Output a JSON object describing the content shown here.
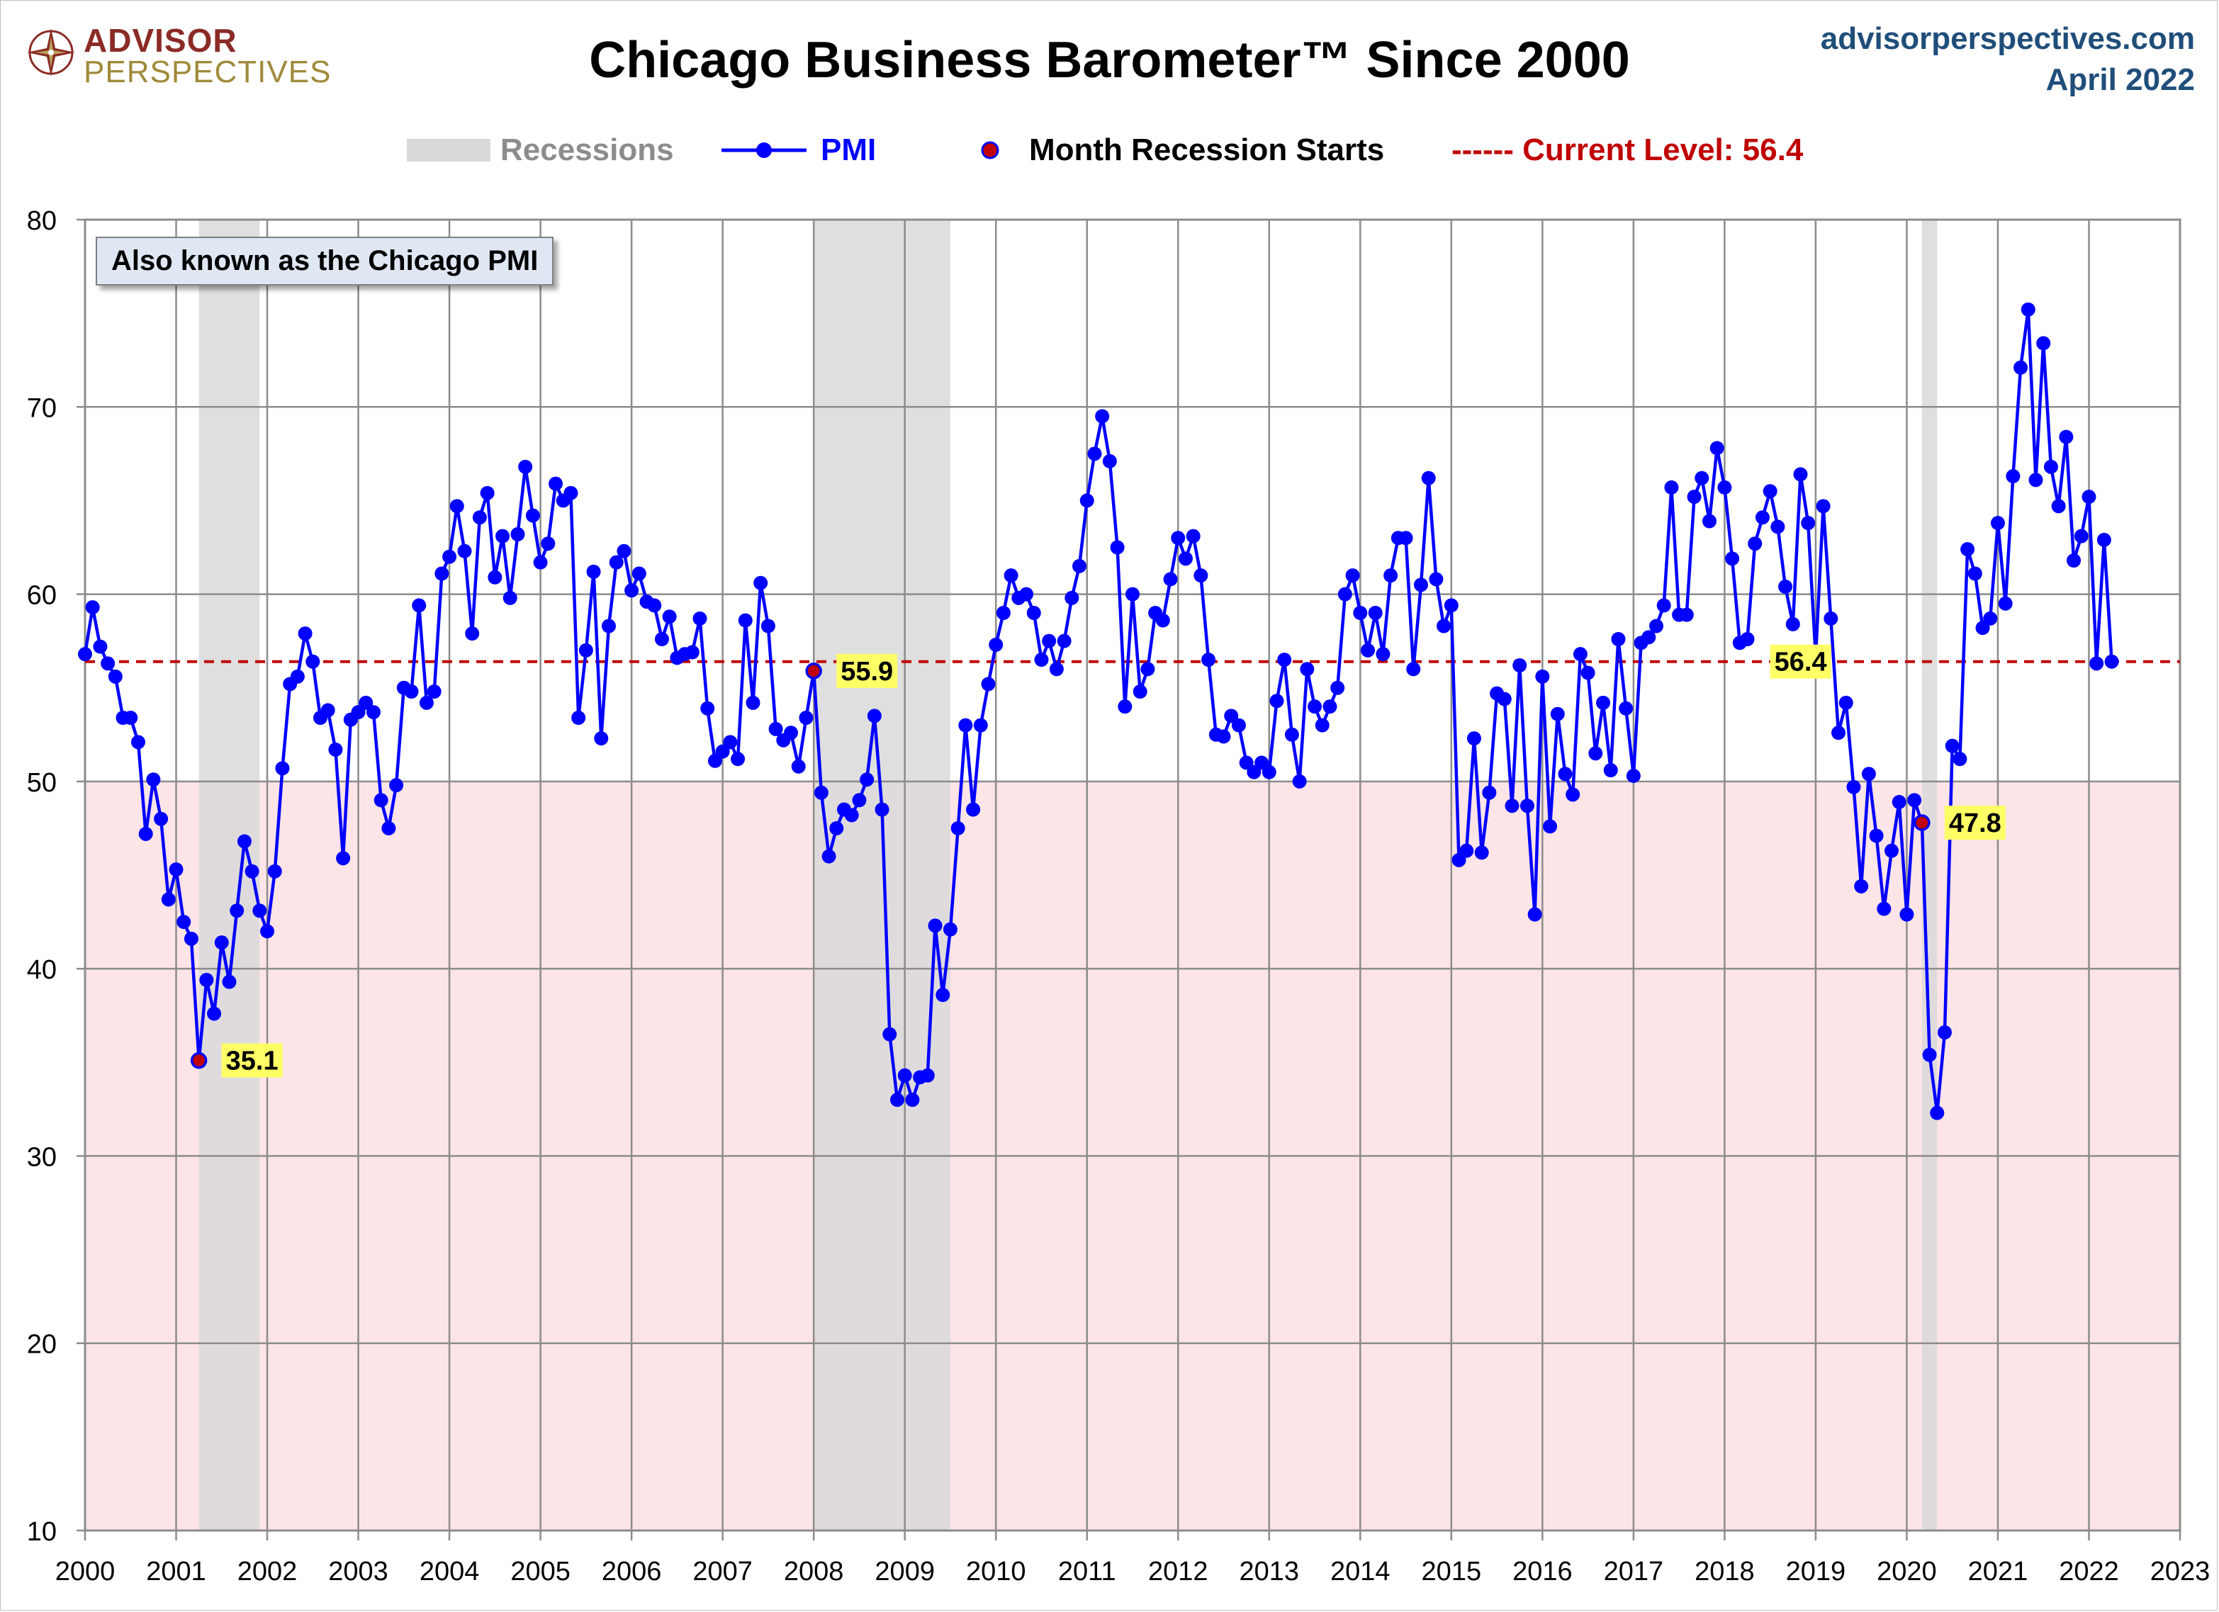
{
  "header": {
    "title": "Chicago Business Barometer™ Since 2000",
    "site": "advisorperspectives.com",
    "date": "April 2022",
    "logo_line1": "ADVISOR",
    "logo_line2": "PERSPECTIVES"
  },
  "legend": {
    "recessions": "Recessions",
    "pmi": "PMI",
    "recession_start": "Month Recession Starts",
    "current": "------ Current Level: 56.4"
  },
  "note": "Also known as the Chicago PMI",
  "colors": {
    "pmi_line": "#0000ff",
    "recession_band": "#d9d9d9",
    "contraction_zone": "#fde4e6",
    "current_line": "#c00000",
    "recession_marker": "#c00000",
    "callout_bg": "#ffff66"
  },
  "chart_data": {
    "type": "line",
    "title": "Chicago Business Barometer™ Since 2000",
    "xlabel": "",
    "ylabel": "",
    "xlim": [
      2000,
      2023
    ],
    "ylim": [
      10,
      80
    ],
    "x_ticks": [
      "2000",
      "2001",
      "2002",
      "2003",
      "2004",
      "2005",
      "2006",
      "2007",
      "2008",
      "2009",
      "2010",
      "2011",
      "2012",
      "2013",
      "2014",
      "2015",
      "2016",
      "2017",
      "2018",
      "2019",
      "2020",
      "2021",
      "2022",
      "2023"
    ],
    "y_ticks": [
      "10",
      "20",
      "30",
      "40",
      "50",
      "60",
      "70",
      "80"
    ],
    "grid": true,
    "legend_position": "top",
    "contraction_threshold": 50,
    "current_level": 56.4,
    "recessions": [
      {
        "start": "2001-04",
        "end": "2001-11"
      },
      {
        "start": "2008-01",
        "end": "2009-06"
      },
      {
        "start": "2020-03",
        "end": "2020-04"
      }
    ],
    "recession_start_markers": [
      {
        "date": "2001-04",
        "value": 35.1,
        "label": "35.1"
      },
      {
        "date": "2008-01",
        "value": 55.9,
        "label": "55.9"
      },
      {
        "date": "2020-03",
        "value": 47.8,
        "label": "47.8"
      }
    ],
    "current_callout": {
      "date": "2022-04",
      "value": 56.4,
      "label": "56.4"
    },
    "series": [
      {
        "name": "PMI",
        "start": "2000-01",
        "frequency": "monthly",
        "values": [
          56.8,
          59.3,
          57.2,
          56.3,
          55.6,
          53.4,
          53.4,
          52.1,
          47.2,
          50.1,
          48.0,
          43.7,
          45.3,
          42.5,
          41.6,
          35.1,
          39.4,
          37.6,
          41.4,
          39.3,
          43.1,
          46.8,
          45.2,
          43.1,
          42.0,
          45.2,
          50.7,
          55.2,
          55.6,
          57.9,
          56.4,
          53.4,
          53.8,
          51.7,
          45.9,
          53.3,
          53.7,
          54.2,
          53.7,
          49.0,
          47.5,
          49.8,
          55.0,
          54.8,
          59.4,
          54.2,
          54.8,
          61.1,
          62.0,
          64.7,
          62.3,
          57.9,
          64.1,
          65.4,
          60.9,
          63.1,
          59.8,
          63.2,
          66.8,
          64.2,
          61.7,
          62.7,
          65.9,
          65.0,
          65.4,
          53.4,
          57.0,
          61.2,
          52.3,
          58.3,
          61.7,
          62.3,
          60.2,
          61.1,
          59.6,
          59.4,
          57.6,
          58.8,
          56.6,
          56.8,
          56.9,
          58.7,
          53.9,
          51.1,
          51.6,
          52.1,
          51.2,
          58.6,
          54.2,
          60.6,
          58.3,
          52.8,
          52.2,
          52.6,
          50.8,
          53.4,
          55.9,
          49.4,
          46.0,
          47.5,
          48.5,
          48.2,
          49.0,
          50.1,
          53.5,
          48.5,
          36.5,
          33.0,
          34.3,
          33.0,
          34.2,
          34.3,
          42.3,
          38.6,
          42.1,
          47.5,
          53.0,
          48.5,
          53.0,
          55.2,
          57.3,
          59.0,
          61.0,
          59.8,
          60.0,
          59.0,
          56.5,
          57.5,
          56.0,
          57.5,
          59.8,
          61.5,
          65.0,
          67.5,
          69.5,
          67.1,
          62.5,
          54.0,
          60.0,
          54.8,
          56.0,
          59.0,
          58.6,
          60.8,
          63.0,
          61.9,
          63.1,
          61.0,
          56.5,
          52.5,
          52.4,
          53.5,
          53.0,
          51.0,
          50.5,
          51.0,
          50.5,
          54.3,
          56.5,
          52.5,
          50.0,
          56.0,
          54.0,
          53.0,
          54.0,
          55.0,
          60.0,
          61.0,
          59.0,
          57.0,
          59.0,
          56.8,
          61.0,
          63.0,
          63.0,
          56.0,
          60.5,
          66.2,
          60.8,
          58.3,
          59.4,
          45.8,
          46.3,
          52.3,
          46.2,
          49.4,
          54.7,
          54.4,
          48.7,
          56.2,
          48.7,
          42.9,
          55.6,
          47.6,
          53.6,
          50.4,
          49.3,
          56.8,
          55.8,
          51.5,
          54.2,
          50.6,
          57.6,
          53.9,
          50.3,
          57.4,
          57.7,
          58.3,
          59.4,
          65.7,
          58.9,
          58.9,
          65.2,
          66.2,
          63.9,
          67.8,
          65.7,
          61.9,
          57.4,
          57.6,
          62.7,
          64.1,
          65.5,
          63.6,
          60.4,
          58.4,
          66.4,
          63.8,
          56.7,
          64.7,
          58.7,
          52.6,
          54.2,
          49.7,
          44.4,
          50.4,
          47.1,
          43.2,
          46.3,
          48.9,
          42.9,
          49.0,
          47.8,
          35.4,
          32.3,
          36.6,
          51.9,
          51.2,
          62.4,
          61.1,
          58.2,
          58.7,
          63.8,
          59.5,
          66.3,
          72.1,
          75.2,
          66.1,
          73.4,
          66.8,
          64.7,
          68.4,
          61.8,
          63.1,
          65.2,
          56.3,
          62.9,
          56.4
        ]
      }
    ]
  }
}
